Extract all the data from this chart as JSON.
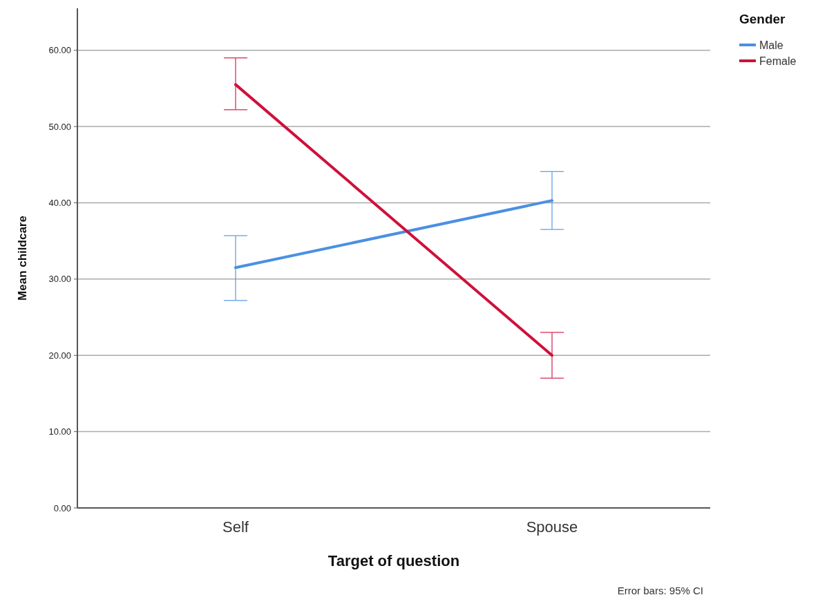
{
  "chart_data": {
    "type": "line",
    "xlabel": "Target of question",
    "ylabel": "Mean childcare",
    "legend_title": "Gender",
    "categories": [
      "Self",
      "Spouse"
    ],
    "series": [
      {
        "name": "Male",
        "color": "#4a90e2",
        "values": [
          31.5,
          40.3
        ],
        "errors": [
          [
            27.2,
            35.7
          ],
          [
            36.5,
            44.1
          ]
        ]
      },
      {
        "name": "Female",
        "color": "#d0103a",
        "values": [
          55.5,
          20.0
        ],
        "errors": [
          [
            52.2,
            59.0
          ],
          [
            17.0,
            23.0
          ]
        ]
      }
    ],
    "ylim": [
      0,
      65.5
    ],
    "yticks": [
      {
        "value": 0,
        "label": "0.00"
      },
      {
        "value": 10,
        "label": "10.00"
      },
      {
        "value": 20,
        "label": "20.00"
      },
      {
        "value": 30,
        "label": "30.00"
      },
      {
        "value": 40,
        "label": "40.00"
      },
      {
        "value": 50,
        "label": "50.00"
      },
      {
        "value": 60,
        "label": "60.00"
      }
    ],
    "grid": "y",
    "legend": "top right",
    "marker": "none",
    "line_style": "solid",
    "annotations": [
      "Error bars: 95% CI"
    ]
  }
}
